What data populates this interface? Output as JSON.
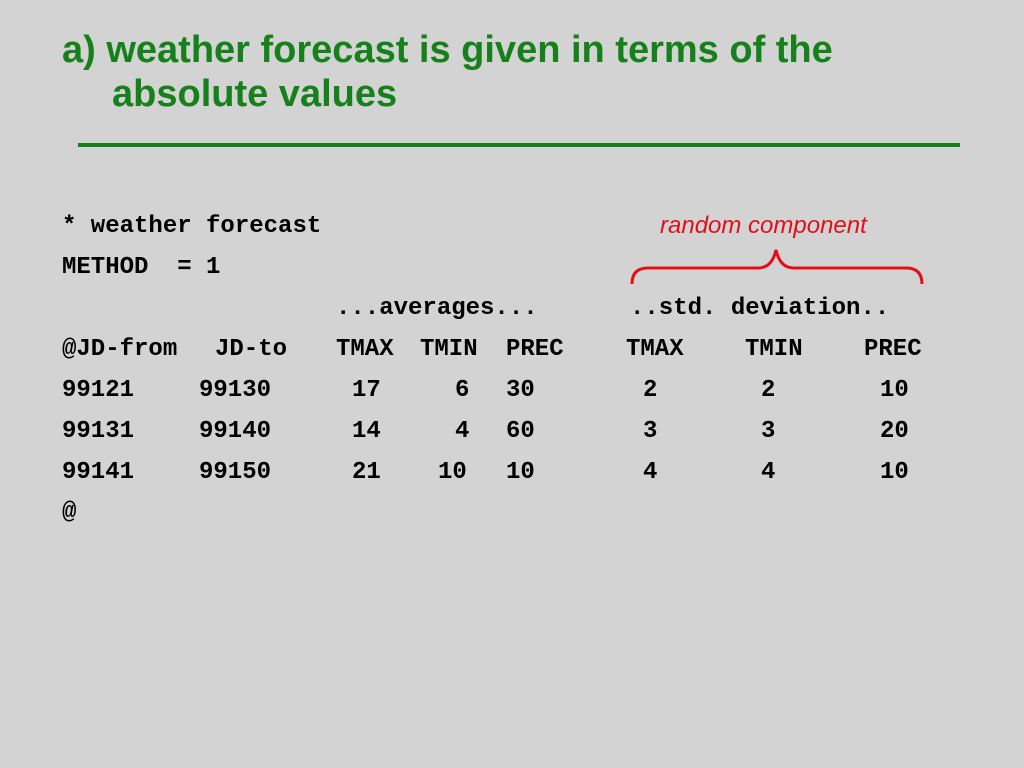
{
  "title": {
    "line1": "a) weather forecast is given in terms of the",
    "line2": "absolute values"
  },
  "annotation": "random component",
  "colors": {
    "background": "#d3d3d3",
    "title": "#16801a",
    "annotation": "#e0101a",
    "code": "#000000"
  },
  "code": {
    "comment": "* weather forecast",
    "method": "METHOD  = 1",
    "averages_label": "...averages...",
    "std_label": "..std. deviation..",
    "header": {
      "jd_from": "@JD-from",
      "jd_to": "JD-to",
      "tmax": "TMAX",
      "tmin": "TMIN",
      "prec": "PREC",
      "sd_tmax": "TMAX",
      "sd_tmin": "TMIN",
      "sd_prec": "PREC"
    },
    "rows": [
      {
        "jd_from": "99121",
        "jd_to": "99130",
        "tmax": "17",
        "tmin": "6",
        "prec": "30",
        "sd_tmax": "2",
        "sd_tmin": "2",
        "sd_prec": "10"
      },
      {
        "jd_from": "99131",
        "jd_to": "99140",
        "tmax": "14",
        "tmin": "4",
        "prec": "60",
        "sd_tmax": "3",
        "sd_tmin": "3",
        "sd_prec": "20"
      },
      {
        "jd_from": "99141",
        "jd_to": "99150",
        "tmax": "21",
        "tmin": "10",
        "prec": "10",
        "sd_tmax": "4",
        "sd_tmin": "4",
        "sd_prec": "10"
      }
    ],
    "end": "@"
  }
}
